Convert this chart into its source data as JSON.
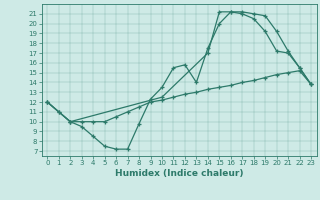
{
  "title": "",
  "xlabel": "Humidex (Indice chaleur)",
  "xlim": [
    -0.5,
    23.5
  ],
  "ylim": [
    6.5,
    22
  ],
  "yticks": [
    7,
    8,
    9,
    10,
    11,
    12,
    13,
    14,
    15,
    16,
    17,
    18,
    19,
    20,
    21
  ],
  "xticks": [
    0,
    1,
    2,
    3,
    4,
    5,
    6,
    7,
    8,
    9,
    10,
    11,
    12,
    13,
    14,
    15,
    16,
    17,
    18,
    19,
    20,
    21,
    22,
    23
  ],
  "color": "#2d7a6a",
  "bg_color": "#ceeae6",
  "line1_x": [
    0,
    1,
    2,
    3,
    4,
    5,
    6,
    7,
    8,
    9,
    10,
    11,
    12,
    13,
    14,
    15,
    16,
    17,
    18,
    19,
    20,
    21,
    22,
    23
  ],
  "line1_y": [
    12,
    11,
    10,
    9.5,
    8.5,
    7.5,
    7.2,
    7.2,
    9.8,
    12.3,
    13.5,
    15.5,
    15.8,
    14.0,
    17.5,
    20.0,
    21.2,
    21.2,
    21.0,
    20.8,
    19.2,
    17.2,
    15.5,
    13.8
  ],
  "line2_x": [
    0,
    1,
    2,
    3,
    4,
    5,
    6,
    7,
    8,
    9,
    10,
    11,
    12,
    13,
    14,
    15,
    16,
    17,
    18,
    19,
    20,
    21,
    22,
    23
  ],
  "line2_y": [
    12,
    11,
    10,
    10,
    10,
    10,
    10.5,
    11,
    11.5,
    12,
    12.2,
    12.5,
    12.8,
    13.0,
    13.3,
    13.5,
    13.7,
    14.0,
    14.2,
    14.5,
    14.8,
    15.0,
    15.2,
    13.8
  ],
  "line3_x": [
    0,
    2,
    10,
    14,
    15,
    16,
    17,
    18,
    19,
    20,
    21,
    22,
    23
  ],
  "line3_y": [
    12,
    10,
    12.5,
    17.0,
    21.2,
    21.2,
    21.0,
    20.5,
    19.2,
    17.2,
    17.0,
    15.5,
    13.8
  ],
  "tick_fontsize": 5,
  "xlabel_fontsize": 6.5
}
